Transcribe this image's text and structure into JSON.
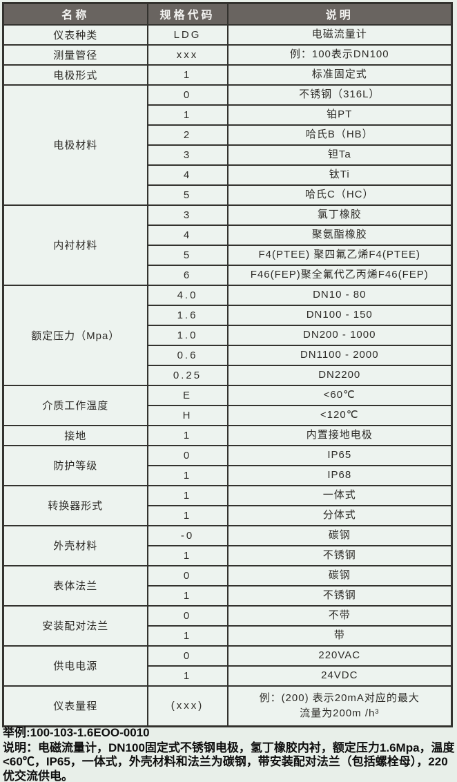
{
  "colors": {
    "page_bg": "#e8efe9",
    "cell_bg": "#edf3ef",
    "header_bg": "#696460",
    "header_text": "#f4f4f2",
    "border_color": "#33322e",
    "cell_text": "#2d2b27",
    "footer_text": "#0e0e0e"
  },
  "table": {
    "headers": [
      "名称",
      "规格代码",
      "说明"
    ],
    "groups": [
      {
        "name": "仪表种类",
        "rows": [
          {
            "code": "LDG",
            "desc": "电磁流量计"
          }
        ]
      },
      {
        "name": "测量管径",
        "rows": [
          {
            "code": "xxx",
            "desc": "例：100表示DN100"
          }
        ]
      },
      {
        "name": "电极形式",
        "rows": [
          {
            "code": "1",
            "desc": "标准固定式"
          }
        ]
      },
      {
        "name": "电极材料",
        "rows": [
          {
            "code": "0",
            "desc": "不锈钢（316L）"
          },
          {
            "code": "1",
            "desc": "铂PT"
          },
          {
            "code": "2",
            "desc": "哈氏B（HB）"
          },
          {
            "code": "3",
            "desc": "钽Ta"
          },
          {
            "code": "4",
            "desc": "钛Ti"
          },
          {
            "code": "5",
            "desc": "哈氏C（HC）"
          }
        ]
      },
      {
        "name": "内衬材料",
        "rows": [
          {
            "code": "3",
            "desc": "氯丁橡胶"
          },
          {
            "code": "4",
            "desc": "聚氨酯橡胶"
          },
          {
            "code": "5",
            "desc": "F4(PTEE) 聚四氟乙烯F4(PTEE)"
          },
          {
            "code": "6",
            "desc": "F46(FEP)聚全氟代乙丙烯F46(FEP)"
          }
        ]
      },
      {
        "name": "额定压力（Mpa）",
        "rows": [
          {
            "code": "4.0",
            "desc": "DN10 - 80"
          },
          {
            "code": "1.6",
            "desc": "DN100 - 150"
          },
          {
            "code": "1.0",
            "desc": "DN200 - 1000"
          },
          {
            "code": "0.6",
            "desc": "DN1100 - 2000"
          },
          {
            "code": "0.25",
            "desc": "DN2200"
          }
        ]
      },
      {
        "name": "介质工作温度",
        "rows": [
          {
            "code": "E",
            "desc": "<60℃"
          },
          {
            "code": "H",
            "desc": "<120℃"
          }
        ]
      },
      {
        "name": "接地",
        "rows": [
          {
            "code": "1",
            "desc": "内置接地电极"
          }
        ]
      },
      {
        "name": "防护等级",
        "rows": [
          {
            "code": "0",
            "desc": "IP65"
          },
          {
            "code": "1",
            "desc": "IP68"
          }
        ]
      },
      {
        "name": "转换器形式",
        "rows": [
          {
            "code": "1",
            "desc": "一体式"
          },
          {
            "code": "1",
            "desc": "分体式"
          }
        ]
      },
      {
        "name": "外壳材料",
        "rows": [
          {
            "code": "-0",
            "desc": "碳钢"
          },
          {
            "code": "1",
            "desc": "不锈钢"
          }
        ]
      },
      {
        "name": "表体法兰",
        "rows": [
          {
            "code": "0",
            "desc": "碳钢"
          },
          {
            "code": "1",
            "desc": "不锈钢"
          }
        ]
      },
      {
        "name": "安装配对法兰",
        "rows": [
          {
            "code": "0",
            "desc": "不带"
          },
          {
            "code": "1",
            "desc": "带"
          }
        ]
      },
      {
        "name": "供电电源",
        "rows": [
          {
            "code": "0",
            "desc": "220VAC"
          },
          {
            "code": "1",
            "desc": "24VDC"
          }
        ]
      },
      {
        "name": "仪表量程",
        "tall": true,
        "rows": [
          {
            "code": "(xxx)",
            "desc": "例：(200) 表示20mA对应的最大\n流量为200m /h³"
          }
        ]
      }
    ]
  },
  "footer": {
    "example_line": "举例:100-103-1.6EOO-0010",
    "description_line": "说明：电磁流量计，DN100固定式不锈钢电极，氢丁橡胶内衬，额定压力1.6Mpa，温度<60℃，IP65，一体式，外壳材料和法兰为碳钢，带安装配对法兰（包括螺栓母），220优交流供电。"
  }
}
